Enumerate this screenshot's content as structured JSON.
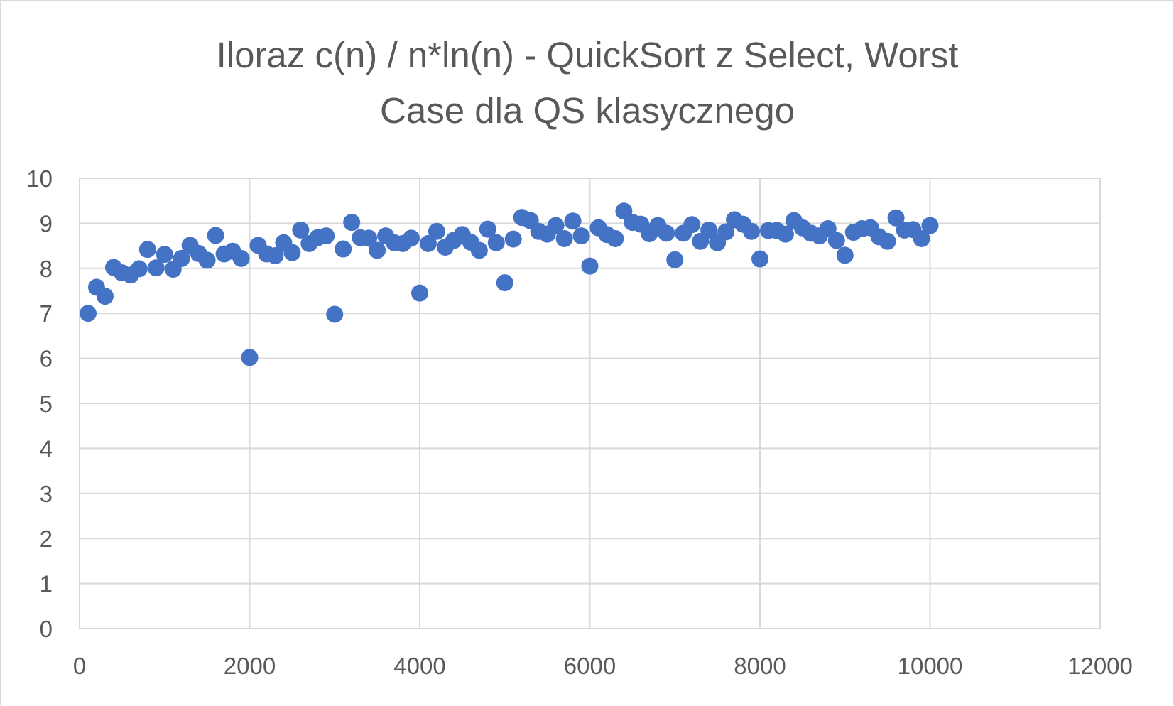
{
  "chart_data": {
    "type": "scatter",
    "title": "Iloraz c(n) / n*ln(n) - QuickSort z Select, Worst Case dla QS klasycznego",
    "title_lines": [
      "Iloraz c(n) / n*ln(n) - QuickSort z Select, Worst",
      "Case dla QS klasycznego"
    ],
    "xlabel": "",
    "ylabel": "",
    "xlim": [
      0,
      12000
    ],
    "ylim": [
      0,
      10
    ],
    "x_ticks": [
      "0",
      "2000",
      "4000",
      "6000",
      "8000",
      "10000",
      "12000"
    ],
    "y_ticks": [
      "0",
      "1",
      "2",
      "3",
      "4",
      "5",
      "6",
      "7",
      "8",
      "9",
      "10"
    ],
    "grid": true,
    "legend": "none",
    "marker_color": "#4472c4",
    "series": [
      {
        "x": [
          100,
          200,
          300,
          400,
          500,
          600,
          700,
          800,
          900,
          1000,
          1100,
          1200,
          1300,
          1400,
          1500,
          1600,
          1700,
          1800,
          1900,
          2000,
          2100,
          2200,
          2300,
          2400,
          2500,
          2600,
          2700,
          2800,
          2900,
          3000,
          3100,
          3200,
          3300,
          3400,
          3500,
          3600,
          3700,
          3800,
          3900,
          4000,
          4100,
          4200,
          4300,
          4400,
          4500,
          4600,
          4700,
          4800,
          4900,
          5000,
          5100,
          5200,
          5300,
          5400,
          5500,
          5600,
          5700,
          5800,
          5900,
          6000,
          6100,
          6200,
          6300,
          6400,
          6500,
          6600,
          6700,
          6800,
          6900,
          7000,
          7100,
          7200,
          7300,
          7400,
          7500,
          7600,
          7700,
          7800,
          7900,
          8000,
          8100,
          8200,
          8300,
          8400,
          8500,
          8600,
          8700,
          8800,
          8900,
          9000,
          9100,
          9200,
          9300,
          9400,
          9500,
          9600,
          9700,
          9800,
          9900,
          10000
        ],
        "y": [
          7.0,
          7.58,
          7.38,
          8.02,
          7.9,
          7.85,
          7.99,
          8.42,
          8.01,
          8.31,
          7.98,
          8.22,
          8.51,
          8.33,
          8.18,
          8.73,
          8.32,
          8.38,
          8.22,
          6.02,
          8.51,
          8.32,
          8.28,
          8.57,
          8.35,
          8.85,
          8.55,
          8.68,
          8.72,
          6.98,
          8.43,
          9.02,
          8.68,
          8.67,
          8.4,
          8.72,
          8.57,
          8.55,
          8.67,
          7.45,
          8.55,
          8.82,
          8.47,
          8.62,
          8.75,
          8.58,
          8.4,
          8.87,
          8.57,
          7.68,
          8.65,
          9.13,
          9.06,
          8.82,
          8.76,
          8.95,
          8.66,
          9.05,
          8.72,
          8.05,
          8.9,
          8.75,
          8.66,
          9.27,
          9.02,
          8.98,
          8.77,
          8.95,
          8.78,
          8.19,
          8.78,
          8.97,
          8.6,
          8.85,
          8.57,
          8.81,
          9.08,
          8.98,
          8.82,
          8.21,
          8.84,
          8.84,
          8.76,
          9.06,
          8.9,
          8.78,
          8.72,
          8.88,
          8.62,
          8.29,
          8.8,
          8.88,
          8.9,
          8.7,
          8.6,
          9.12,
          8.85,
          8.86,
          8.66,
          8.95
        ]
      }
    ]
  }
}
